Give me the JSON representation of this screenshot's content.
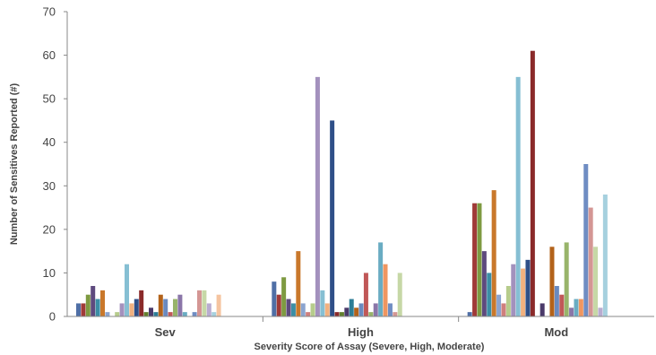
{
  "chart_data": {
    "type": "bar",
    "title": "",
    "xlabel": "Severity Score of Assay (Severe, High, Moderate)",
    "ylabel": "Number of Sensitives Reported (#)",
    "ylim": [
      0,
      70
    ],
    "yticks": [
      0,
      10,
      20,
      30,
      40,
      50,
      60,
      70
    ],
    "grid": false,
    "legend": "none",
    "categories": [
      "Sev",
      "High",
      "Mod"
    ],
    "series_count": 36,
    "colors": [
      "#4f6fa6",
      "#a03a38",
      "#7e9a41",
      "#5e4a7e",
      "#3b8ea5",
      "#c9782b",
      "#8ba4cf",
      "#cf7f7d",
      "#b6cc8c",
      "#a391bd",
      "#86bfd3",
      "#f2b17f",
      "#2f4f88",
      "#8a2a2a",
      "#627f2d",
      "#4a3a6a",
      "#2c7d96",
      "#b3621a",
      "#6a8ac0",
      "#c05858",
      "#98b46a",
      "#8a76a8",
      "#69acc2",
      "#f09660",
      "#6f8dc3",
      "#d49694",
      "#c6d8a6",
      "#b9acd0",
      "#a6d0de",
      "#f5c4a0",
      "#3b5a8f",
      "#b04a46",
      "#8aa852",
      "#6e5a92",
      "#4a9ab2",
      "#de8a3c"
    ],
    "values": {
      "Sev": [
        3,
        3,
        5,
        7,
        4,
        6,
        1,
        0,
        1,
        3,
        12,
        3,
        4,
        6,
        1,
        2,
        1,
        5,
        4,
        1,
        4,
        5,
        1,
        0,
        1,
        6,
        6,
        3,
        1,
        5,
        0,
        0,
        0,
        0,
        0,
        0
      ],
      "High": [
        8,
        5,
        9,
        4,
        3,
        15,
        3,
        1,
        3,
        55,
        6,
        3,
        45,
        1,
        1,
        2,
        4,
        2,
        3,
        10,
        1,
        3,
        17,
        12,
        3,
        1,
        10,
        0,
        0,
        0,
        0,
        0,
        0,
        0,
        0,
        0
      ],
      "Mod": [
        1,
        26,
        26,
        15,
        10,
        29,
        5,
        3,
        7,
        12,
        55,
        11,
        13,
        61,
        0,
        3,
        0,
        16,
        7,
        5,
        17,
        2,
        4,
        4,
        35,
        25,
        16,
        2,
        28,
        0,
        0,
        0,
        0,
        0,
        0,
        0
      ]
    }
  }
}
